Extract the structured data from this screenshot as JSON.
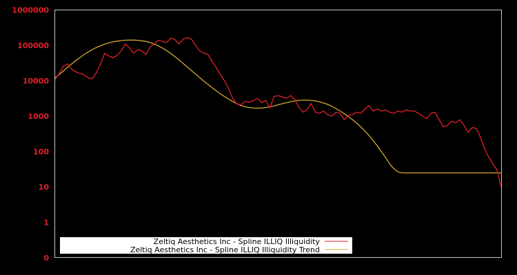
{
  "colors": {
    "background": "#000000",
    "frame": "#c8c8c8",
    "tick_label": "#e0202a",
    "series_illiquidity": "#e0202a",
    "series_trend": "#d4aa30",
    "legend_bg": "#ffffff",
    "legend_text": "#000000"
  },
  "legend": {
    "items": [
      {
        "label": "Zeltiq Aesthetics Inc - Spline ILLIQ Illiquidity",
        "color": "#e0202a"
      },
      {
        "label": "Zeltiq Aesthetics Inc - Spline ILLIQ Illiquidity Trend",
        "color": "#d4aa30"
      }
    ]
  },
  "chart_data": {
    "type": "line",
    "title": "",
    "xlabel": "",
    "ylabel": "",
    "yscale": "log",
    "ylim": [
      0,
      1000000
    ],
    "y_ticks": [
      "1000000",
      "100000",
      "10000",
      "1000",
      "100",
      "10",
      "1",
      "0"
    ],
    "x_ticks": [],
    "grid": false,
    "legend_position": "lower-left",
    "x": [
      0,
      1,
      2,
      3,
      4,
      5,
      6,
      7,
      8,
      9,
      10,
      11,
      12,
      13,
      14,
      15,
      16,
      17,
      18,
      19,
      20,
      21,
      22,
      23,
      24,
      25,
      26,
      27,
      28,
      29,
      30,
      31,
      32,
      33,
      34,
      35,
      36,
      37,
      38,
      39,
      40,
      41,
      42,
      43,
      44,
      45,
      46,
      47,
      48,
      49,
      50,
      51,
      52,
      53,
      54,
      55,
      56,
      57,
      58,
      59,
      60,
      61,
      62,
      63,
      64,
      65,
      66,
      67,
      68,
      69,
      70,
      71,
      72,
      73,
      74,
      75,
      76,
      77,
      78,
      79,
      80,
      81,
      82,
      83,
      84,
      85,
      86,
      87,
      88,
      89,
      90,
      91,
      92,
      93,
      94,
      95,
      96,
      97,
      98,
      99,
      100,
      101,
      102,
      103,
      104,
      105,
      106,
      107,
      108
    ],
    "series": [
      {
        "name": "Zeltiq Aesthetics Inc - Spline ILLIQ Illiquidity",
        "values": [
          11000,
          16000,
          26000,
          30000,
          21000,
          18000,
          16000,
          15000,
          12000,
          11500,
          17000,
          30000,
          60000,
          50000,
          45000,
          52000,
          70000,
          110000,
          85000,
          60000,
          75000,
          70000,
          55000,
          90000,
          110000,
          140000,
          130000,
          120000,
          160000,
          145000,
          110000,
          150000,
          165000,
          150000,
          100000,
          70000,
          60000,
          55000,
          35000,
          24000,
          15000,
          10000,
          6000,
          3200,
          2200,
          2100,
          2600,
          2500,
          2700,
          3200,
          2400,
          2800,
          1700,
          3600,
          3800,
          3500,
          3200,
          3800,
          3000,
          1800,
          1300,
          1500,
          2300,
          1300,
          1200,
          1400,
          1100,
          1000,
          1300,
          1200,
          800,
          1050,
          1100,
          1300,
          1200,
          1600,
          2000,
          1400,
          1600,
          1400,
          1500,
          1300,
          1200,
          1400,
          1300,
          1500,
          1400,
          1400,
          1200,
          1000,
          850,
          1200,
          1300,
          800,
          500,
          550,
          720,
          650,
          800,
          550,
          350,
          480,
          450,
          250,
          120,
          70,
          45,
          30,
          10
        ]
      },
      {
        "name": "Zeltiq Aesthetics Inc - Spline ILLIQ Illiquidity Trend",
        "values": [
          12000,
          15000,
          19000,
          24000,
          30000,
          37000,
          45000,
          55000,
          65000,
          76000,
          87000,
          98000,
          108000,
          118000,
          126000,
          132000,
          137000,
          140000,
          141000,
          141000,
          139000,
          135000,
          129000,
          120000,
          109000,
          97000,
          84000,
          71000,
          59000,
          48000,
          39000,
          31000,
          24500,
          19500,
          15500,
          12300,
          9800,
          7900,
          6400,
          5200,
          4300,
          3600,
          3050,
          2600,
          2250,
          2000,
          1850,
          1750,
          1700,
          1680,
          1700,
          1750,
          1850,
          1950,
          2100,
          2250,
          2400,
          2550,
          2700,
          2800,
          2850,
          2850,
          2800,
          2700,
          2550,
          2350,
          2150,
          1900,
          1650,
          1400,
          1180,
          980,
          800,
          640,
          500,
          380,
          285,
          205,
          145,
          100,
          68,
          45,
          33,
          27,
          25,
          25,
          25,
          25,
          25,
          25,
          25,
          25,
          25,
          25,
          25,
          25,
          25,
          25,
          25,
          25,
          25,
          25,
          25,
          25,
          25,
          25,
          25,
          25,
          25
        ]
      }
    ]
  }
}
